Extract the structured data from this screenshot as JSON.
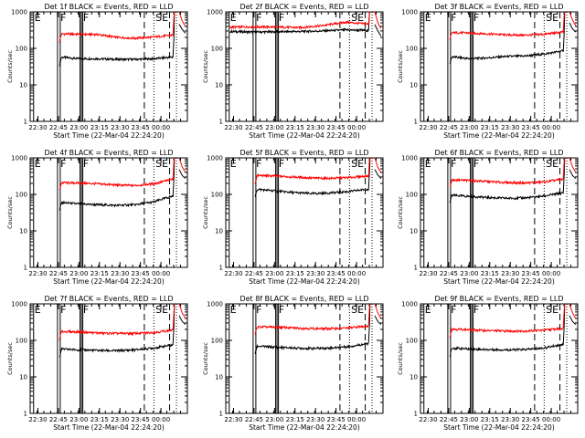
{
  "chart_data": [
    {
      "type": "line",
      "title": "Det 1f BLACK = Events, RED = LLD",
      "xlabel": "Start Time (22-Mar-04 22:24:20)",
      "ylabel": "Counts/sec",
      "x_ticks": [
        "22:30",
        "22:45",
        "23:00",
        "23:15",
        "23:30",
        "23:45",
        "00:00"
      ],
      "y_ticks": [
        "1",
        "10",
        "100",
        "1000"
      ],
      "ylim": [
        1,
        1000
      ],
      "yscale": "log",
      "markers": [
        "E",
        "F",
        "F",
        "SE"
      ],
      "series": [
        {
          "color": "#000000",
          "start_min": 21.5,
          "end_min": 104.5,
          "base": [
            58,
            52,
            52,
            50,
            50,
            52,
            58
          ],
          "post": [
            460,
            330,
            260
          ]
        },
        {
          "color": "#ff0000",
          "start_min": 21.5,
          "end_min": 104.5,
          "base": [
            250,
            245,
            240,
            200,
            190,
            205,
            230
          ],
          "post": [
            1000,
            560,
            400
          ]
        }
      ]
    },
    {
      "type": "line",
      "title": "Det 2f BLACK = Events, RED = LLD",
      "xlabel": "Start Time (22-Mar-04 22:24:20)",
      "ylabel": "Counts/sec",
      "x_ticks": [
        "22:30",
        "22:45",
        "23:00",
        "23:15",
        "23:30",
        "23:45",
        "00:00"
      ],
      "y_ticks": [
        "1",
        "10",
        "100",
        "1000"
      ],
      "ylim": [
        1,
        1000
      ],
      "yscale": "log",
      "markers": [
        "E",
        "F",
        "F",
        "SE"
      ],
      "series": [
        {
          "color": "#000000",
          "start_min": 3,
          "end_min": 104.5,
          "base": [
            290,
            280,
            285,
            290,
            300,
            320,
            310
          ],
          "post": [
            450,
            300,
            220
          ]
        },
        {
          "color": "#ff0000",
          "start_min": 3,
          "end_min": 104.5,
          "base": [
            380,
            390,
            385,
            370,
            420,
            520,
            460
          ],
          "post": [
            1100,
            500,
            350
          ]
        }
      ]
    },
    {
      "type": "line",
      "title": "Det 3f BLACK = Events, RED = LLD",
      "xlabel": "Start Time (22-Mar-04 22:24:20)",
      "ylabel": "Counts/sec",
      "x_ticks": [
        "22:30",
        "22:45",
        "23:00",
        "23:15",
        "23:30",
        "23:45",
        "00:00"
      ],
      "y_ticks": [
        "1",
        "10",
        "100",
        "1000"
      ],
      "ylim": [
        1,
        1000
      ],
      "yscale": "log",
      "markers": [
        "E",
        "F",
        "F",
        "SE"
      ],
      "series": [
        {
          "color": "#000000",
          "start_min": 21.5,
          "end_min": 104.5,
          "base": [
            60,
            52,
            55,
            60,
            62,
            70,
            85
          ],
          "post": [
            500,
            340,
            280
          ]
        },
        {
          "color": "#ff0000",
          "start_min": 21.5,
          "end_min": 104.5,
          "base": [
            270,
            265,
            250,
            235,
            230,
            245,
            280
          ],
          "post": [
            1000,
            600,
            420
          ]
        }
      ]
    },
    {
      "type": "line",
      "title": "Det 4f BLACK = Events, RED = LLD",
      "xlabel": "Start Time (22-Mar-04 22:24:20)",
      "ylabel": "Counts/sec",
      "x_ticks": [
        "22:30",
        "22:45",
        "23:00",
        "23:15",
        "23:30",
        "23:45",
        "00:00"
      ],
      "y_ticks": [
        "1",
        "10",
        "100",
        "1000"
      ],
      "ylim": [
        1,
        1000
      ],
      "yscale": "log",
      "markers": [
        "E",
        "F",
        "F",
        "SE"
      ],
      "series": [
        {
          "color": "#000000",
          "start_min": 21.5,
          "end_min": 104.5,
          "base": [
            60,
            55,
            52,
            50,
            52,
            62,
            90
          ],
          "post": [
            480,
            330,
            270
          ]
        },
        {
          "color": "#ff0000",
          "start_min": 21.5,
          "end_min": 104.5,
          "base": [
            210,
            205,
            195,
            180,
            175,
            195,
            260
          ],
          "post": [
            1000,
            560,
            400
          ]
        }
      ]
    },
    {
      "type": "line",
      "title": "Det 5f BLACK = Events, RED = LLD",
      "xlabel": "Start Time (22-Mar-04 22:24:20)",
      "ylabel": "Counts/sec",
      "x_ticks": [
        "22:30",
        "22:45",
        "23:00",
        "23:15",
        "23:30",
        "23:45",
        "00:00"
      ],
      "y_ticks": [
        "1",
        "10",
        "100",
        "1000"
      ],
      "ylim": [
        1,
        1000
      ],
      "yscale": "log",
      "markers": [
        "E",
        "F",
        "F",
        "SE"
      ],
      "series": [
        {
          "color": "#000000",
          "start_min": 21.5,
          "end_min": 104.5,
          "base": [
            140,
            125,
            112,
            105,
            110,
            120,
            140
          ],
          "post": [
            480,
            340,
            270
          ]
        },
        {
          "color": "#ff0000",
          "start_min": 21.5,
          "end_min": 104.5,
          "base": [
            330,
            320,
            300,
            280,
            275,
            290,
            320
          ],
          "post": [
            1000,
            550,
            400
          ]
        }
      ]
    },
    {
      "type": "line",
      "title": "Det 6f BLACK = Events, RED = LLD",
      "xlabel": "Start Time (22-Mar-04 22:24:20)",
      "ylabel": "Counts/sec",
      "x_ticks": [
        "22:30",
        "22:45",
        "23:00",
        "23:15",
        "23:30",
        "23:45",
        "00:00"
      ],
      "y_ticks": [
        "1",
        "10",
        "100",
        "1000"
      ],
      "ylim": [
        1,
        1000
      ],
      "yscale": "log",
      "markers": [
        "E",
        "F",
        "F",
        "SE"
      ],
      "series": [
        {
          "color": "#000000",
          "start_min": 21.5,
          "end_min": 104.5,
          "base": [
            95,
            88,
            82,
            78,
            80,
            90,
            110
          ],
          "post": [
            480,
            330,
            270
          ]
        },
        {
          "color": "#ff0000",
          "start_min": 21.5,
          "end_min": 104.5,
          "base": [
            250,
            240,
            225,
            210,
            205,
            220,
            260
          ],
          "post": [
            1000,
            560,
            400
          ]
        }
      ]
    },
    {
      "type": "line",
      "title": "Det 7f BLACK = Events, RED = LLD",
      "xlabel": "Start Time (22-Mar-04 22:24:20)",
      "ylabel": "Counts/sec",
      "x_ticks": [
        "22:30",
        "22:45",
        "23:00",
        "23:15",
        "23:30",
        "23:45",
        "00:00"
      ],
      "y_ticks": [
        "1",
        "10",
        "100",
        "1000"
      ],
      "ylim": [
        1,
        1000
      ],
      "yscale": "log",
      "markers": [
        "E",
        "F",
        "F",
        "SE"
      ],
      "series": [
        {
          "color": "#000000",
          "start_min": 21.5,
          "end_min": 104.5,
          "base": [
            58,
            55,
            53,
            52,
            55,
            62,
            75
          ],
          "post": [
            480,
            330,
            270
          ]
        },
        {
          "color": "#ff0000",
          "start_min": 21.5,
          "end_min": 104.5,
          "base": [
            175,
            170,
            160,
            155,
            155,
            165,
            190
          ],
          "post": [
            1000,
            560,
            400
          ]
        }
      ]
    },
    {
      "type": "line",
      "title": "Det 8f BLACK = Events, RED = LLD",
      "xlabel": "Start Time (22-Mar-04 22:24:20)",
      "ylabel": "Counts/sec",
      "x_ticks": [
        "22:30",
        "22:45",
        "23:00",
        "23:15",
        "23:30",
        "23:45",
        "00:00"
      ],
      "y_ticks": [
        "1",
        "10",
        "100",
        "1000"
      ],
      "ylim": [
        1,
        1000
      ],
      "yscale": "log",
      "markers": [
        "E",
        "F",
        "F",
        "SE"
      ],
      "series": [
        {
          "color": "#000000",
          "start_min": 21.5,
          "end_min": 104.5,
          "base": [
            70,
            65,
            62,
            60,
            62,
            68,
            82
          ],
          "post": [
            480,
            330,
            270
          ]
        },
        {
          "color": "#ff0000",
          "start_min": 21.5,
          "end_min": 104.5,
          "base": [
            235,
            230,
            220,
            210,
            210,
            220,
            250
          ],
          "post": [
            1000,
            560,
            400
          ]
        }
      ]
    },
    {
      "type": "line",
      "title": "Det 9f BLACK = Events, RED = LLD",
      "xlabel": "Start Time (22-Mar-04 22:24:20)",
      "ylabel": "Counts/sec",
      "x_ticks": [
        "22:30",
        "22:45",
        "23:00",
        "23:15",
        "23:30",
        "23:45",
        "00:00"
      ],
      "y_ticks": [
        "1",
        "10",
        "100",
        "1000"
      ],
      "ylim": [
        1,
        1000
      ],
      "yscale": "log",
      "markers": [
        "E",
        "F",
        "F",
        "SE"
      ],
      "series": [
        {
          "color": "#000000",
          "start_min": 21.5,
          "end_min": 104.5,
          "base": [
            62,
            58,
            56,
            55,
            56,
            62,
            78
          ],
          "post": [
            480,
            330,
            270
          ]
        },
        {
          "color": "#ff0000",
          "start_min": 21.5,
          "end_min": 104.5,
          "base": [
            205,
            195,
            185,
            180,
            180,
            190,
            215
          ],
          "post": [
            1000,
            560,
            400
          ]
        }
      ]
    }
  ]
}
